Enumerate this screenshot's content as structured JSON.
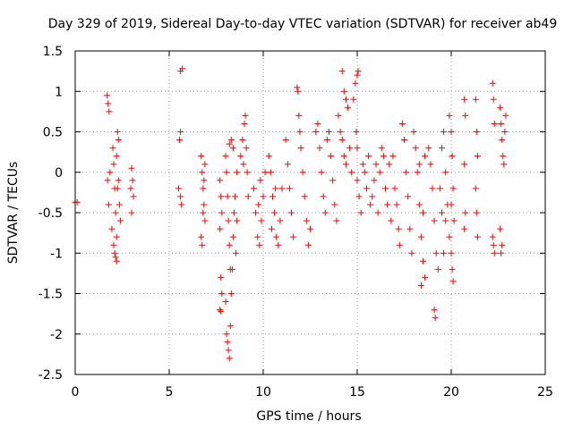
{
  "chart_data": {
    "type": "scatter",
    "title": "Day 329 of 2019, Sidereal Day-to-day VTEC variation (SDTVAR) for receiver ab49",
    "xlabel": "GPS time / hours",
    "ylabel": "SDTVAR / TECUs",
    "xlim": [
      0,
      25
    ],
    "ylim": [
      -2.5,
      1.5
    ],
    "xticks": [
      0,
      5,
      10,
      15,
      20,
      25
    ],
    "xtick_labels": [
      "0",
      "5",
      "10",
      "15",
      "20",
      "25"
    ],
    "yticks": [
      -2.5,
      -2,
      -1.5,
      -1,
      -0.5,
      0,
      0.5,
      1,
      1.5
    ],
    "ytick_labels": [
      "-2.5",
      "-2",
      "-1.5",
      "-1",
      "-0.5",
      "0",
      "0.5",
      "1",
      "1.5"
    ],
    "grid": true,
    "marker": "+",
    "color": "#ff0000",
    "series": [
      {
        "name": "SDTVAR",
        "points": [
          [
            0.0,
            -0.37
          ],
          [
            0.1,
            -0.37
          ],
          [
            1.7,
            0.95
          ],
          [
            1.75,
            0.85
          ],
          [
            1.8,
            0.75
          ],
          [
            1.72,
            -0.1
          ],
          [
            1.78,
            -0.4
          ],
          [
            1.85,
            0.0
          ],
          [
            2.0,
            0.3
          ],
          [
            2.05,
            0.1
          ],
          [
            2.1,
            -0.2
          ],
          [
            2.15,
            -0.5
          ],
          [
            2.2,
            -0.8
          ],
          [
            2.05,
            -0.9
          ],
          [
            2.1,
            -1.0
          ],
          [
            2.15,
            -1.05
          ],
          [
            2.2,
            -1.1
          ],
          [
            2.25,
            0.5
          ],
          [
            2.3,
            0.4
          ],
          [
            2.35,
            -0.4
          ],
          [
            2.4,
            -0.6
          ],
          [
            2.2,
            0.2
          ],
          [
            2.25,
            -0.2
          ],
          [
            1.95,
            -0.7
          ],
          [
            2.3,
            -0.1
          ],
          [
            3.0,
            0.05
          ],
          [
            3.05,
            -0.1
          ],
          [
            3.1,
            -0.3
          ],
          [
            3.0,
            -0.5
          ],
          [
            2.95,
            -0.2
          ],
          [
            5.6,
            1.25
          ],
          [
            5.7,
            1.28
          ],
          [
            5.6,
            0.5
          ],
          [
            5.55,
            0.4
          ],
          [
            5.6,
            -0.3
          ],
          [
            5.65,
            -0.4
          ],
          [
            5.5,
            -0.2
          ],
          [
            6.7,
            0.2
          ],
          [
            6.75,
            0.0
          ],
          [
            6.8,
            -0.2
          ],
          [
            6.85,
            -0.4
          ],
          [
            6.9,
            -0.6
          ],
          [
            6.7,
            -0.8
          ],
          [
            6.75,
            -0.9
          ],
          [
            6.8,
            -0.5
          ],
          [
            6.85,
            -0.1
          ],
          [
            6.9,
            0.1
          ],
          [
            7.7,
            -0.1
          ],
          [
            7.75,
            -0.3
          ],
          [
            7.8,
            -0.5
          ],
          [
            7.7,
            -0.7
          ],
          [
            7.75,
            -1.3
          ],
          [
            7.8,
            -1.5
          ],
          [
            7.7,
            -1.7
          ],
          [
            7.75,
            -1.72
          ],
          [
            8.0,
            0.2
          ],
          [
            8.05,
            0.0
          ],
          [
            8.1,
            -0.3
          ],
          [
            8.15,
            -0.6
          ],
          [
            8.2,
            -0.9
          ],
          [
            8.25,
            -1.2
          ],
          [
            8.0,
            -1.6
          ],
          [
            8.05,
            -2.0
          ],
          [
            8.1,
            -2.1
          ],
          [
            8.15,
            -2.2
          ],
          [
            8.2,
            -2.3
          ],
          [
            8.25,
            -1.9
          ],
          [
            8.3,
            -1.5
          ],
          [
            8.35,
            -1.2
          ],
          [
            8.4,
            -0.8
          ],
          [
            8.45,
            -0.5
          ],
          [
            8.5,
            -0.3
          ],
          [
            8.2,
            0.35
          ],
          [
            8.3,
            0.4
          ],
          [
            8.4,
            0.3
          ],
          [
            8.6,
            0.0
          ],
          [
            8.6,
            -0.6
          ],
          [
            8.55,
            -1.0
          ],
          [
            8.8,
            0.2
          ],
          [
            8.9,
            0.4
          ],
          [
            9.0,
            0.6
          ],
          [
            9.05,
            0.7
          ],
          [
            9.1,
            0.3
          ],
          [
            9.15,
            0.0
          ],
          [
            9.2,
            -0.3
          ],
          [
            8.95,
            0.1
          ],
          [
            9.5,
            -0.2
          ],
          [
            9.6,
            -0.5
          ],
          [
            9.7,
            -0.8
          ],
          [
            9.8,
            -0.9
          ],
          [
            9.9,
            -0.6
          ],
          [
            10.0,
            -0.3
          ],
          [
            10.1,
            0.0
          ],
          [
            9.75,
            -0.4
          ],
          [
            9.85,
            -0.1
          ],
          [
            10.3,
            0.2
          ],
          [
            10.4,
            0.0
          ],
          [
            10.5,
            -0.3
          ],
          [
            10.6,
            -0.5
          ],
          [
            10.7,
            -0.8
          ],
          [
            10.8,
            -0.9
          ],
          [
            10.9,
            -0.6
          ],
          [
            11.0,
            -0.2
          ],
          [
            10.45,
            -0.7
          ],
          [
            10.65,
            -0.2
          ],
          [
            11.2,
            0.4
          ],
          [
            11.3,
            0.1
          ],
          [
            11.4,
            -0.2
          ],
          [
            11.5,
            -0.5
          ],
          [
            11.6,
            -0.8
          ],
          [
            11.8,
            1.05
          ],
          [
            11.85,
            1.0
          ],
          [
            11.9,
            0.7
          ],
          [
            11.95,
            0.5
          ],
          [
            12.0,
            0.3
          ],
          [
            12.1,
            0.0
          ],
          [
            12.2,
            -0.3
          ],
          [
            12.3,
            -0.6
          ],
          [
            12.4,
            -0.9
          ],
          [
            12.5,
            -0.7
          ],
          [
            12.8,
            0.5
          ],
          [
            12.9,
            0.6
          ],
          [
            13.0,
            0.3
          ],
          [
            13.1,
            0.0
          ],
          [
            13.2,
            -0.3
          ],
          [
            13.3,
            -0.5
          ],
          [
            13.4,
            0.4
          ],
          [
            13.5,
            0.5
          ],
          [
            13.6,
            0.2
          ],
          [
            13.7,
            -0.1
          ],
          [
            13.8,
            -0.4
          ],
          [
            13.9,
            -0.6
          ],
          [
            14.0,
            0.7
          ],
          [
            14.1,
            0.5
          ],
          [
            14.2,
            0.4
          ],
          [
            14.3,
            0.2
          ],
          [
            14.4,
            0.1
          ],
          [
            14.2,
            1.25
          ],
          [
            14.3,
            1.0
          ],
          [
            14.4,
            0.9
          ],
          [
            14.5,
            0.8
          ],
          [
            14.6,
            0.3
          ],
          [
            14.7,
            0.0
          ],
          [
            14.8,
            0.9
          ],
          [
            14.9,
            1.1
          ],
          [
            15.0,
            1.2
          ],
          [
            15.05,
            1.25
          ],
          [
            14.95,
            0.5
          ],
          [
            15.0,
            0.3
          ],
          [
            15.0,
            -0.1
          ],
          [
            15.1,
            -0.3
          ],
          [
            15.2,
            -0.5
          ],
          [
            15.3,
            0.1
          ],
          [
            15.4,
            0.0
          ],
          [
            15.5,
            -0.2
          ],
          [
            15.6,
            0.2
          ],
          [
            15.7,
            -0.4
          ],
          [
            15.8,
            -0.3
          ],
          [
            15.9,
            -0.1
          ],
          [
            16.0,
            0.1
          ],
          [
            16.1,
            -0.5
          ],
          [
            16.2,
            0.0
          ],
          [
            16.3,
            0.3
          ],
          [
            16.4,
            0.2
          ],
          [
            16.5,
            -0.2
          ],
          [
            16.6,
            -0.4
          ],
          [
            16.7,
            0.1
          ],
          [
            16.8,
            -0.6
          ],
          [
            16.9,
            0.2
          ],
          [
            17.0,
            -0.2
          ],
          [
            17.1,
            -0.4
          ],
          [
            17.2,
            -0.7
          ],
          [
            17.25,
            -0.9
          ],
          [
            17.4,
            0.6
          ],
          [
            17.5,
            0.4
          ],
          [
            17.6,
            0.0
          ],
          [
            17.7,
            -0.3
          ],
          [
            17.8,
            -0.7
          ],
          [
            17.9,
            -1.0
          ],
          [
            18.0,
            0.5
          ],
          [
            18.1,
            0.3
          ],
          [
            18.2,
            0.0
          ],
          [
            18.3,
            -0.4
          ],
          [
            18.4,
            -0.8
          ],
          [
            18.5,
            -1.1
          ],
          [
            18.6,
            -1.3
          ],
          [
            18.4,
            -1.4
          ],
          [
            18.5,
            -0.5
          ],
          [
            18.6,
            0.2
          ],
          [
            18.3,
            0.1
          ],
          [
            18.8,
            0.3
          ],
          [
            18.9,
            0.1
          ],
          [
            19.0,
            -0.2
          ],
          [
            19.1,
            -0.6
          ],
          [
            19.2,
            -1.0
          ],
          [
            19.3,
            -1.2
          ],
          [
            19.1,
            -1.7
          ],
          [
            19.15,
            -1.8
          ],
          [
            19.5,
            0.3
          ],
          [
            19.6,
            0.5
          ],
          [
            19.7,
            0.0
          ],
          [
            19.8,
            -0.4
          ],
          [
            19.9,
            -0.8
          ],
          [
            19.6,
            -1.0
          ],
          [
            19.7,
            -0.6
          ],
          [
            19.4,
            -0.2
          ],
          [
            19.5,
            -0.5
          ],
          [
            19.9,
            0.7
          ],
          [
            20.0,
            0.5
          ],
          [
            20.05,
            0.2
          ],
          [
            20.1,
            -0.2
          ],
          [
            20.15,
            -0.6
          ],
          [
            20.0,
            -1.0
          ],
          [
            20.05,
            -1.2
          ],
          [
            20.1,
            -1.35
          ],
          [
            20.0,
            -0.4
          ],
          [
            20.7,
            0.9
          ],
          [
            20.75,
            0.7
          ],
          [
            20.7,
            0.1
          ],
          [
            20.75,
            -0.5
          ],
          [
            20.7,
            -0.7
          ],
          [
            21.3,
            0.9
          ],
          [
            21.35,
            0.5
          ],
          [
            21.4,
            0.2
          ],
          [
            21.3,
            -0.2
          ],
          [
            21.35,
            -0.5
          ],
          [
            21.4,
            -0.8
          ],
          [
            22.2,
            1.1
          ],
          [
            22.25,
            0.9
          ],
          [
            22.3,
            0.6
          ],
          [
            22.2,
            -0.8
          ],
          [
            22.25,
            -0.9
          ],
          [
            22.3,
            -1.0
          ],
          [
            22.6,
            0.8
          ],
          [
            22.65,
            0.6
          ],
          [
            22.7,
            0.4
          ],
          [
            22.75,
            0.2
          ],
          [
            22.8,
            0.1
          ],
          [
            22.6,
            -0.7
          ],
          [
            22.7,
            -0.9
          ],
          [
            22.65,
            -1.0
          ],
          [
            22.9,
            0.7
          ],
          [
            22.85,
            0.5
          ]
        ]
      }
    ]
  }
}
